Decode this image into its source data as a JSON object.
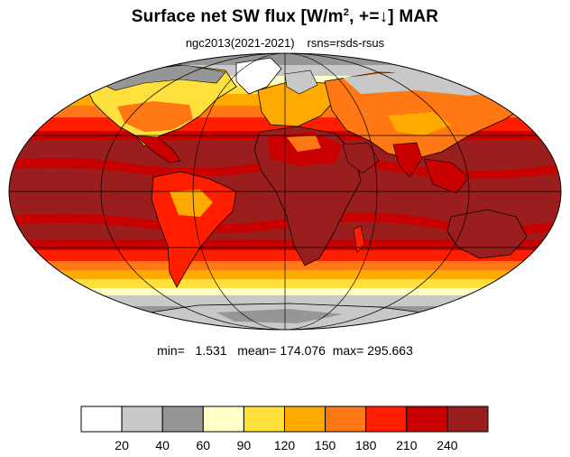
{
  "title": {
    "main": "Surface net SW flux [W/m",
    "sup": "2",
    "rest": ", +=↓]  MAR"
  },
  "subtitle": {
    "dataset": "ngc2013(2021-2021)",
    "variable": "rsns=rsds-rsus"
  },
  "stats": {
    "min_label": "min=",
    "min": "1.531",
    "mean_label": "mean=",
    "mean": "174.076",
    "max_label": "max=",
    "max": "295.663"
  },
  "colorbar": {
    "levels": [
      "20",
      "40",
      "60",
      "90",
      "120",
      "150",
      "180",
      "210",
      "240"
    ],
    "colors": [
      "#ffffff",
      "#c8c8c8",
      "#969696",
      "#ffffc8",
      "#ffe03c",
      "#ffaa00",
      "#ff7814",
      "#ff1e00",
      "#c80000",
      "#9b1e1e"
    ]
  },
  "map": {
    "projection": "mollweide",
    "ocean_color": "#9b1e1e",
    "land_outline_color": "#000000"
  }
}
